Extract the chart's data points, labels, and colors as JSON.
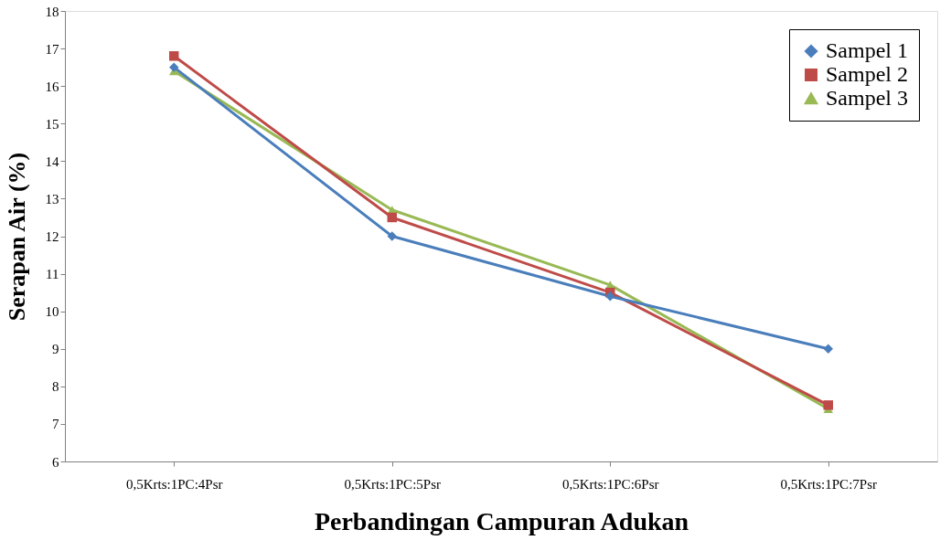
{
  "chart_data": {
    "type": "line",
    "xlabel": "Perbandingan Campuran Adukan",
    "ylabel": "Serapan Air (%)",
    "categories": [
      "0,5Krts:1PC:4Psr",
      "0,5Krts:1PC:5Psr",
      "0,5Krts:1PC:6Psr",
      "0,5Krts:1PC:7Psr"
    ],
    "series": [
      {
        "name": "Sampel 1",
        "color": "#4a7ebb",
        "marker": "diamond",
        "values": [
          16.5,
          12.0,
          10.4,
          9.0
        ]
      },
      {
        "name": "Sampel 2",
        "color": "#be4b48",
        "marker": "square",
        "values": [
          16.8,
          12.5,
          10.5,
          7.5
        ]
      },
      {
        "name": "Sampel 3",
        "color": "#98b954",
        "marker": "triangle",
        "values": [
          16.4,
          12.7,
          10.7,
          7.4
        ]
      }
    ],
    "ylim": [
      6,
      18
    ],
    "yticks": [
      6,
      7,
      8,
      9,
      10,
      11,
      12,
      13,
      14,
      15,
      16,
      17,
      18
    ],
    "grid": false,
    "legend": "top right",
    "line_style": "solid"
  }
}
